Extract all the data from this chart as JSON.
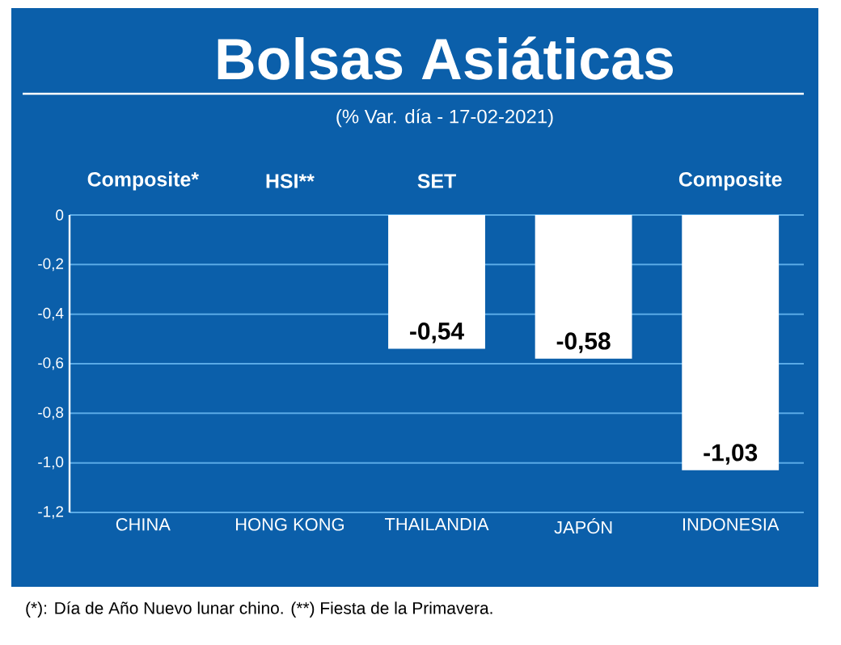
{
  "chart_data": {
    "type": "bar",
    "title": "Bolsas Asiáticas",
    "subtitle": "(% Var. día - 17-02-2021)",
    "categories": [
      "CHINA",
      "HONG KONG",
      "THAILANDIA",
      "JAPÓN",
      "INDONESIA"
    ],
    "values": [
      null,
      null,
      -0.54,
      -0.58,
      -1.03
    ],
    "value_labels": [
      null,
      null,
      "-0,54",
      "-0,58",
      "-1,03"
    ],
    "color": "#ffffff",
    "ylim": [
      -1.2,
      0
    ],
    "yticks": [
      0,
      {
        "value": -0.2,
        "label": "-0,2"
      },
      {
        "value": -0.4,
        "label": "-0,4"
      },
      {
        "value": -0.6,
        "label": "-0,6"
      },
      {
        "value": -0.8,
        "label": "-0,8"
      },
      {
        "value": -1.0,
        "label": "-1,0"
      },
      {
        "value": -1.2,
        "label": "-1,2"
      }
    ],
    "grid": "y",
    "annotations": [
      "Composite*",
      "HSI**",
      "SET",
      "Composite",
      "(*): Día de Año Nuevo lunar chino. (**) Fiesta de la Primavera."
    ]
  }
}
